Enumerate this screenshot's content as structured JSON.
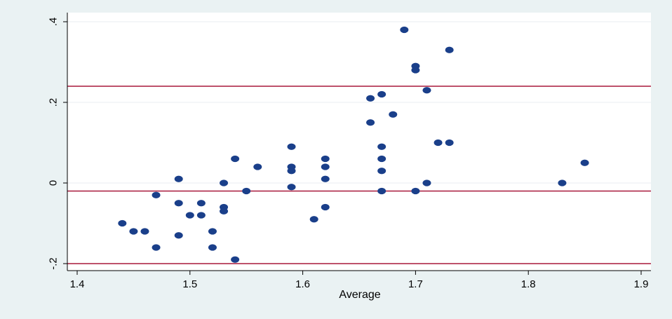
{
  "chart_data": {
    "type": "scatter",
    "title": "",
    "xlabel": "Average",
    "ylabel": "",
    "xlim": [
      1.4,
      1.9
    ],
    "ylim": [
      -0.2,
      0.4
    ],
    "x_ticks": [
      1.4,
      1.5,
      1.6,
      1.7,
      1.8,
      1.9
    ],
    "y_ticks": [
      -0.2,
      0,
      0.2,
      0.4
    ],
    "x_tick_labels": [
      "1.4",
      "1.5",
      "1.6",
      "1.7",
      "1.8",
      "1.9"
    ],
    "y_tick_labels": [
      "-.2",
      "0",
      ".2",
      ".4"
    ],
    "grid": true,
    "reference_lines": [
      0.24,
      -0.02,
      -0.2
    ],
    "colors": {
      "plot_background": "#ffffff",
      "outer_background": "#eaf2f3",
      "markers": "#1a3f8a",
      "reference_lines": "#a8183a",
      "grid": "#e8eef0"
    },
    "points": [
      {
        "x": 1.44,
        "y": -0.1
      },
      {
        "x": 1.45,
        "y": -0.12
      },
      {
        "x": 1.46,
        "y": -0.12
      },
      {
        "x": 1.47,
        "y": -0.03
      },
      {
        "x": 1.47,
        "y": -0.16
      },
      {
        "x": 1.49,
        "y": 0.01
      },
      {
        "x": 1.49,
        "y": -0.05
      },
      {
        "x": 1.49,
        "y": -0.13
      },
      {
        "x": 1.5,
        "y": -0.08
      },
      {
        "x": 1.51,
        "y": -0.05
      },
      {
        "x": 1.51,
        "y": -0.08
      },
      {
        "x": 1.52,
        "y": -0.12
      },
      {
        "x": 1.52,
        "y": -0.16
      },
      {
        "x": 1.53,
        "y": 0.0
      },
      {
        "x": 1.53,
        "y": -0.06
      },
      {
        "x": 1.53,
        "y": -0.07
      },
      {
        "x": 1.54,
        "y": 0.06
      },
      {
        "x": 1.54,
        "y": -0.19
      },
      {
        "x": 1.55,
        "y": -0.02
      },
      {
        "x": 1.56,
        "y": 0.04
      },
      {
        "x": 1.59,
        "y": 0.09
      },
      {
        "x": 1.59,
        "y": 0.04
      },
      {
        "x": 1.59,
        "y": 0.03
      },
      {
        "x": 1.59,
        "y": -0.01
      },
      {
        "x": 1.61,
        "y": -0.09
      },
      {
        "x": 1.62,
        "y": 0.06
      },
      {
        "x": 1.62,
        "y": 0.04
      },
      {
        "x": 1.62,
        "y": 0.01
      },
      {
        "x": 1.62,
        "y": -0.06
      },
      {
        "x": 1.66,
        "y": 0.21
      },
      {
        "x": 1.66,
        "y": 0.15
      },
      {
        "x": 1.67,
        "y": 0.22
      },
      {
        "x": 1.67,
        "y": 0.09
      },
      {
        "x": 1.67,
        "y": 0.06
      },
      {
        "x": 1.67,
        "y": 0.03
      },
      {
        "x": 1.67,
        "y": -0.02
      },
      {
        "x": 1.68,
        "y": 0.17
      },
      {
        "x": 1.69,
        "y": 0.38
      },
      {
        "x": 1.7,
        "y": 0.29
      },
      {
        "x": 1.7,
        "y": 0.28
      },
      {
        "x": 1.7,
        "y": -0.02
      },
      {
        "x": 1.71,
        "y": 0.23
      },
      {
        "x": 1.71,
        "y": 0.0
      },
      {
        "x": 1.72,
        "y": 0.1
      },
      {
        "x": 1.73,
        "y": 0.33
      },
      {
        "x": 1.73,
        "y": 0.1
      },
      {
        "x": 1.83,
        "y": 0.0
      },
      {
        "x": 1.85,
        "y": 0.05
      }
    ]
  }
}
